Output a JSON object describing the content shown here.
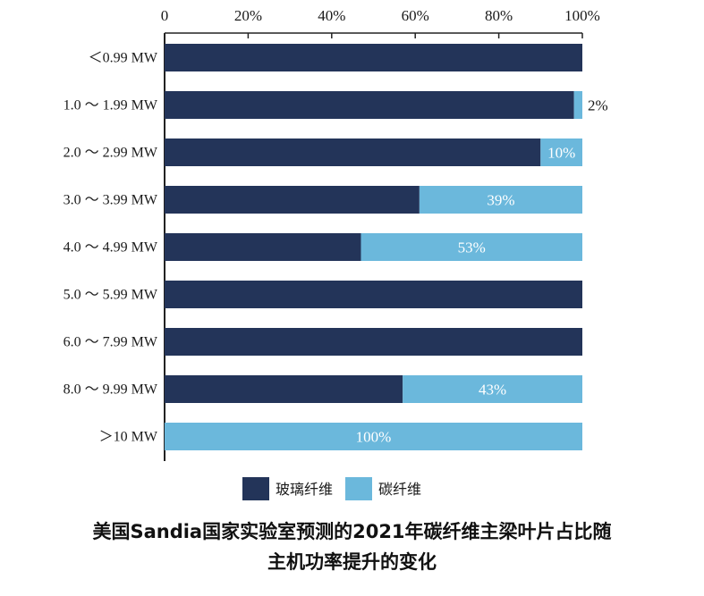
{
  "chart_data": {
    "type": "bar",
    "orientation": "horizontal",
    "stacked": true,
    "categories": [
      "<0.99 MW",
      "1.0 ~ 1.99 MW",
      "2.0 ~ 2.99 MW",
      "3.0 ~ 3.99 MW",
      "4.0 ~ 4.99 MW",
      "5.0 ~ 5.99 MW",
      "6.0 ~ 7.99 MW",
      "8.0 ~ 9.99 MW",
      ">10 MW"
    ],
    "category_labels": [
      "＜0.99 MW",
      "1.0 ～ 1.99 MW",
      "2.0 ～ 2.99 MW",
      "3.0 ～ 3.99 MW",
      "4.0 ～ 4.99 MW",
      "5.0 ～ 5.99 MW",
      "6.0 ～ 7.99 MW",
      "8.0 ～ 9.99 MW",
      "＞10 MW"
    ],
    "series": [
      {
        "name": "玻璃纤维",
        "color": "#233459",
        "values": [
          100,
          98,
          90,
          61,
          47,
          100,
          100,
          57,
          0
        ]
      },
      {
        "name": "碳纤维",
        "color": "#6bb8dc",
        "values": [
          0,
          2,
          10,
          39,
          53,
          0,
          0,
          43,
          100
        ]
      }
    ],
    "data_labels": [
      "",
      "2%",
      "10%",
      "39%",
      "53%",
      "",
      "",
      "43%",
      "100%"
    ],
    "x_ticks": [
      "0",
      "20%",
      "40%",
      "60%",
      "80%",
      "100%"
    ],
    "xlim": [
      0,
      100
    ],
    "axis_position": "top",
    "grid": false,
    "legend_position": "bottom"
  },
  "caption": {
    "line1": "美国Sandia国家实验室预测的2021年碳纤维主梁叶片占比随",
    "line2": "主机功率提升的变化"
  }
}
